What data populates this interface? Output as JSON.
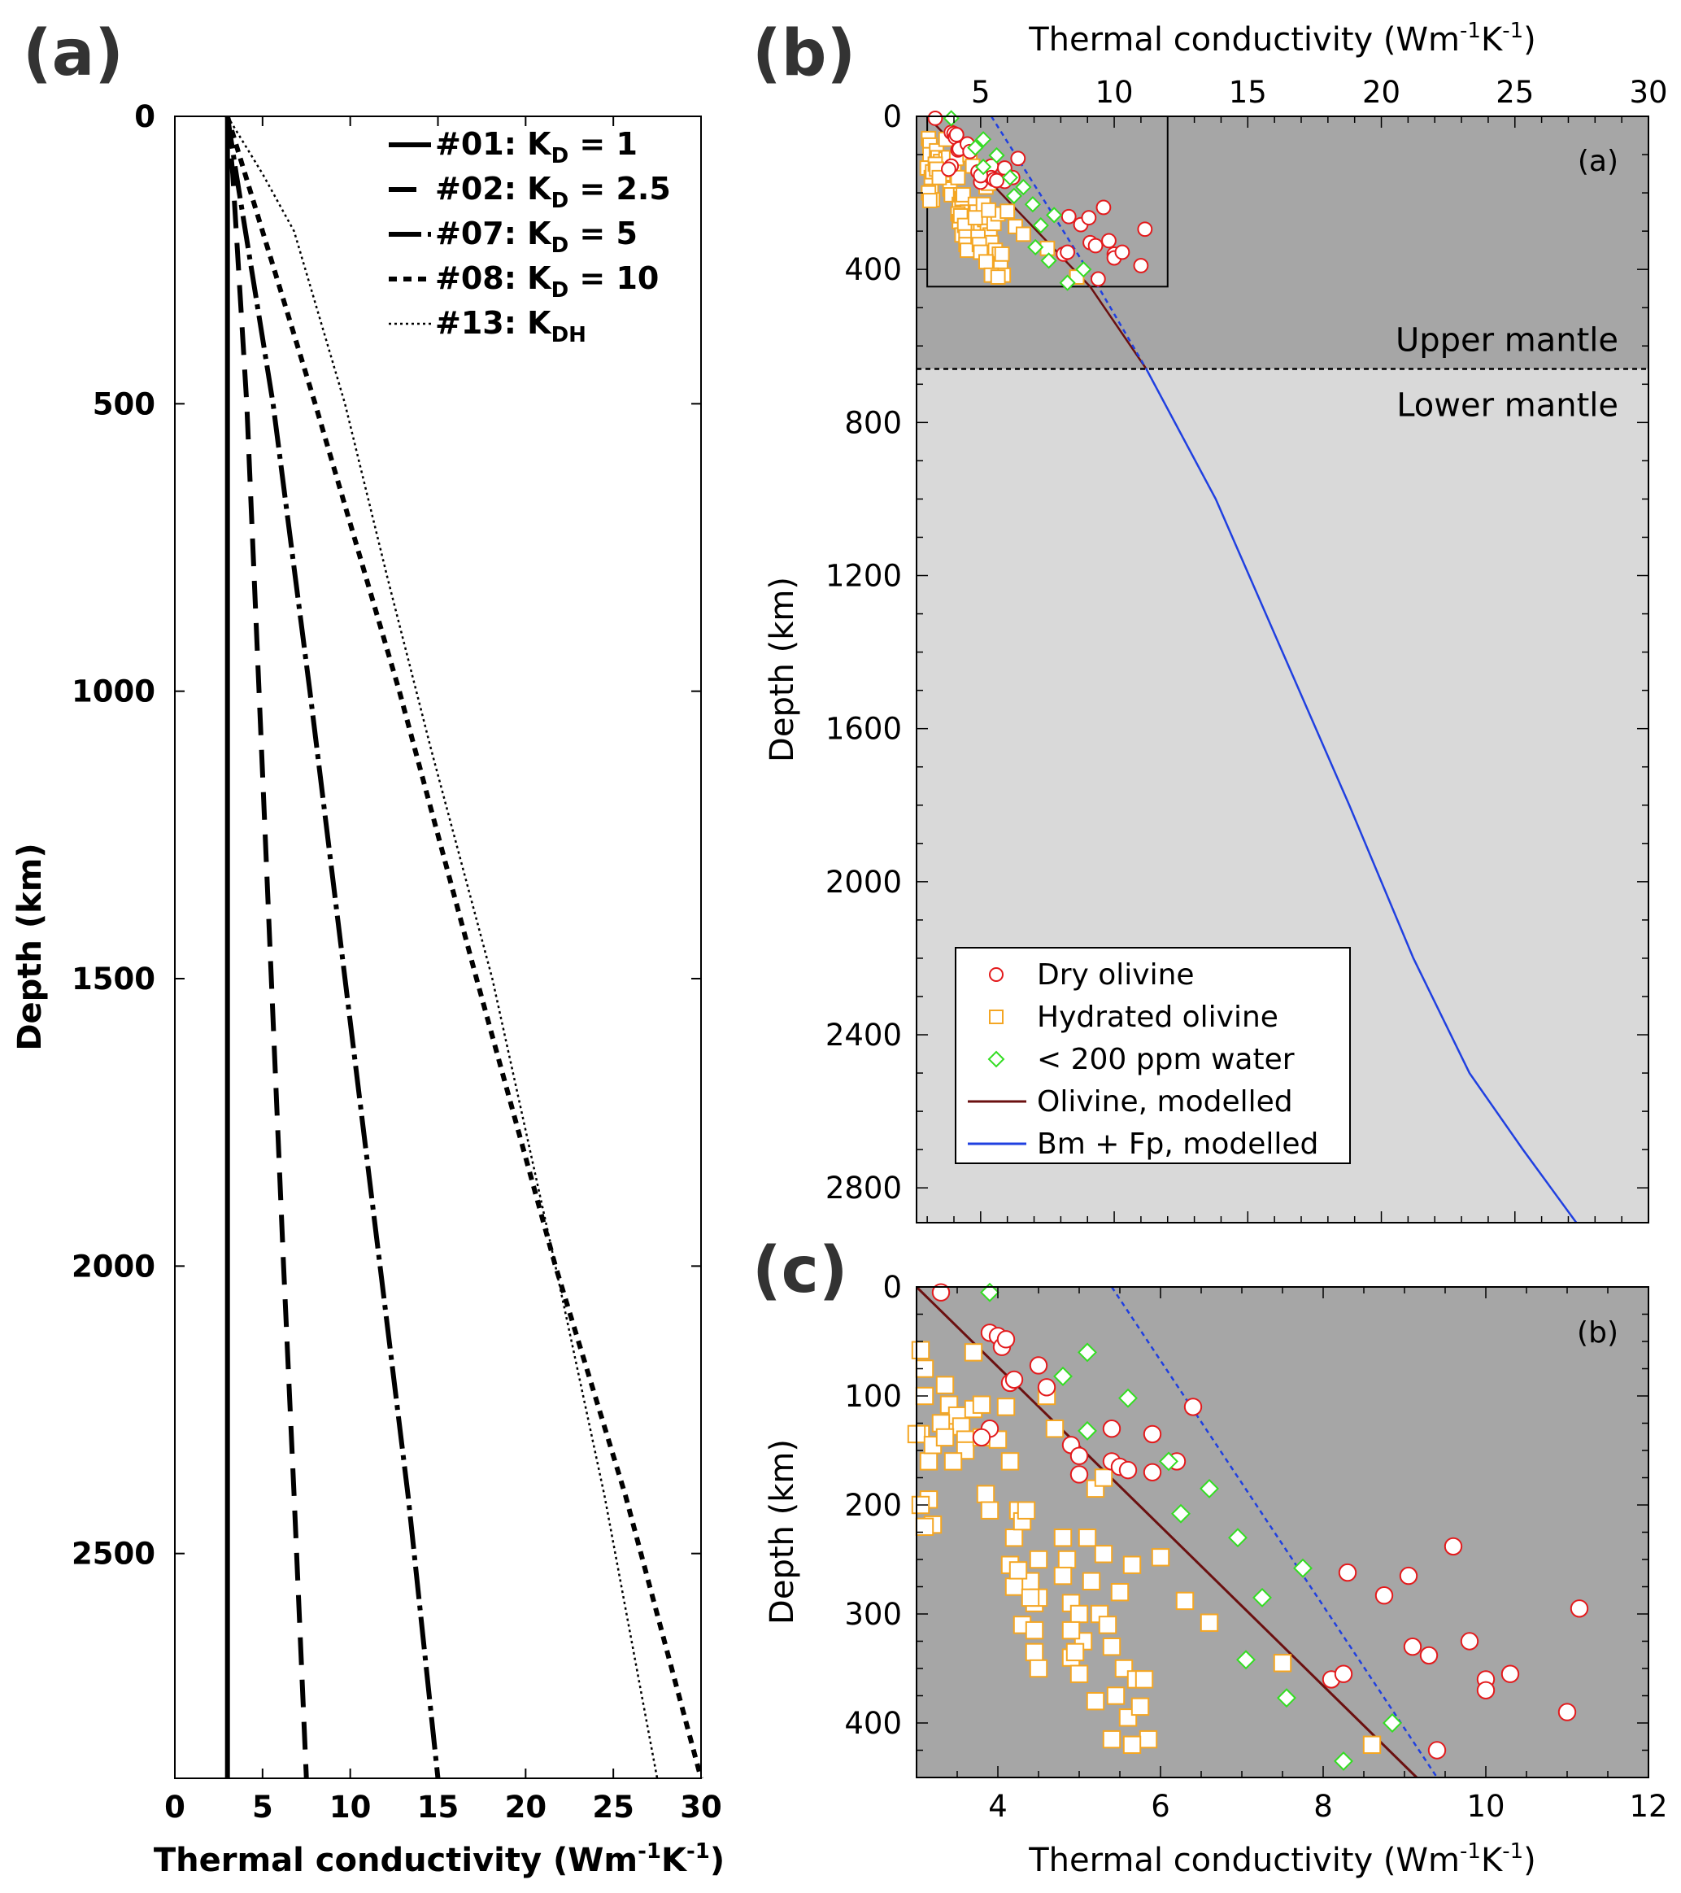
{
  "figure": {
    "panel_labels": [
      "(a)",
      "(b)",
      "(c)"
    ],
    "colors": {
      "dry": "#e31a1c",
      "hydrated": "#f4a623",
      "lowwater": "#33dd22",
      "olivine_model": "#6b1010",
      "bm_model": "#2040e0",
      "upper_mantle_bg": "#a6a6a6",
      "lower_mantle_bg": "#d9d9d9"
    }
  },
  "chart_data": [
    {
      "id": "a",
      "type": "line",
      "title": "(a)",
      "xlabel": "Thermal conductivity (Wm-1K-1)",
      "ylabel": "Depth (km)",
      "xlim": [
        0,
        30
      ],
      "ylim": [
        0,
        2891
      ],
      "y_inverted": true,
      "xticks": [
        0,
        5,
        10,
        15,
        20,
        25,
        30
      ],
      "yticks": [
        0,
        500,
        1000,
        1500,
        2000,
        2500
      ],
      "legend": [
        {
          "label": "#01: K",
          "sub": "D",
          "tail": " = 1",
          "style": "solid"
        },
        {
          "label": "#02: K",
          "sub": "D",
          "tail": " = 2.5",
          "style": "dash-long"
        },
        {
          "label": "#07: K",
          "sub": "D",
          "tail": " = 5",
          "style": "dash-dot"
        },
        {
          "label": "#08: K",
          "sub": "D",
          "tail": " = 10",
          "style": "dash-short"
        },
        {
          "label": "#13: K",
          "sub": "DH",
          "tail": "",
          "style": "dotted"
        }
      ],
      "series": [
        {
          "name": "#01: KD = 1",
          "style": "solid",
          "x": [
            3.0,
            3.0,
            3.0,
            3.0,
            3.0,
            3.0,
            3.0,
            3.0
          ],
          "y": [
            0,
            400,
            800,
            1200,
            1600,
            2000,
            2400,
            2891
          ]
        },
        {
          "name": "#02: KD = 2.5",
          "style": "dash-long",
          "x": [
            3.0,
            3.3,
            4.1,
            4.8,
            5.5,
            6.2,
            6.8,
            7.5
          ],
          "y": [
            0,
            100,
            500,
            1000,
            1500,
            2000,
            2400,
            2891
          ]
        },
        {
          "name": "#07: KD = 5",
          "style": "dash-dot",
          "x": [
            3.0,
            3.5,
            5.6,
            7.7,
            9.7,
            11.7,
            13.3,
            15.0
          ],
          "y": [
            0,
            100,
            500,
            1000,
            1500,
            2000,
            2400,
            2891
          ]
        },
        {
          "name": "#08: KD = 10",
          "style": "dash-short",
          "x": [
            3.0,
            4.0,
            8.0,
            12.8,
            17.2,
            21.7,
            25.7,
            30.0
          ],
          "y": [
            0,
            100,
            500,
            1000,
            1500,
            2000,
            2400,
            2891
          ]
        },
        {
          "name": "#13: KDH",
          "style": "dotted",
          "x": [
            3.0,
            5.0,
            6.8,
            9.7,
            12.1,
            14.6,
            18.1,
            21.7,
            24.5,
            27.5
          ],
          "y": [
            0,
            100,
            200,
            500,
            800,
            1100,
            1500,
            2000,
            2400,
            2891
          ]
        }
      ]
    },
    {
      "id": "b",
      "type": "scatter",
      "title": "(b)",
      "inset_tag": "(a)",
      "xlabel": "Thermal conductivity (Wm-1K-1)",
      "ylabel": "Depth (km)",
      "xlim": [
        2.6,
        30
      ],
      "ylim": [
        0,
        2891
      ],
      "y_inverted": true,
      "xaxis_position": "top",
      "xticks": [
        5,
        10,
        15,
        20,
        25,
        30
      ],
      "yticks": [
        0,
        400,
        800,
        1200,
        1600,
        2000,
        2400,
        2800
      ],
      "regions": [
        {
          "name": "Upper mantle",
          "from": 0,
          "to": 660
        },
        {
          "name": "Lower mantle",
          "from": 660,
          "to": 2891
        }
      ],
      "boundary_depth": 660,
      "zoom_box": {
        "x": [
          3.0,
          12.0
        ],
        "y": [
          0,
          445
        ]
      },
      "legend": [
        "Dry olivine",
        "Hydrated olivine",
        "< 200 ppm water",
        "Olivine, modelled",
        "Bm + Fp, modelled"
      ],
      "series": [
        {
          "name": "Olivine, modelled",
          "style": "solid",
          "x": [
            3.0,
            9.1
          ],
          "y": [
            0,
            445
          ]
        },
        {
          "name": "Olivine, modelled (extended)",
          "style": "solid",
          "x": [
            9.1,
            11.2
          ],
          "y": [
            445,
            660
          ]
        },
        {
          "name": "Bm + Fp, modelled (dashed)",
          "style": "dashed",
          "x": [
            5.4,
            9.4,
            11.2
          ],
          "y": [
            0,
            445,
            660
          ]
        },
        {
          "name": "Bm + Fp, modelled",
          "style": "solid",
          "x": [
            11.2,
            13.8,
            16.3,
            18.8,
            21.2,
            23.3,
            25.3,
            27.3
          ],
          "y": [
            660,
            1000,
            1400,
            1800,
            2200,
            2500,
            2700,
            2891
          ]
        }
      ]
    },
    {
      "id": "c",
      "type": "scatter",
      "title": "(c)",
      "inset_tag": "(b)",
      "xlabel": "Thermal conductivity (Wm-1K-1)",
      "ylabel": "Depth (km)",
      "xlim": [
        3,
        12
      ],
      "ylim": [
        0,
        450
      ],
      "y_inverted": true,
      "xticks": [
        4,
        6,
        8,
        10,
        12
      ],
      "yticks": [
        0,
        100,
        200,
        300,
        400
      ],
      "series": [
        {
          "name": "Olivine, modelled",
          "style": "solid",
          "x": [
            3.0,
            9.15
          ],
          "y": [
            0,
            450
          ]
        },
        {
          "name": "Bm + Fp, modelled",
          "style": "dashed",
          "x": [
            5.4,
            9.4
          ],
          "y": [
            0,
            450
          ]
        }
      ],
      "points": {
        "dry": {
          "x": [
            3.3,
            3.9,
            4.0,
            4.05,
            4.1,
            4.15,
            4.2,
            3.9,
            4.5,
            4.6,
            3.8,
            4.9,
            5.0,
            5.4,
            5.9,
            5.4,
            5.5,
            5.9,
            6.2,
            6.4,
            5.0,
            5.6,
            8.1,
            8.25,
            8.3,
            8.75,
            9.05,
            9.6,
            9.1,
            9.3,
            9.8,
            10.0,
            10.0,
            10.3,
            11.0,
            11.15,
            9.4
          ],
          "y": [
            5,
            42,
            45,
            55,
            48,
            88,
            85,
            130,
            72,
            92,
            138,
            145,
            172,
            130,
            135,
            160,
            165,
            170,
            160,
            110,
            155,
            168,
            360,
            355,
            262,
            283,
            265,
            238,
            330,
            338,
            325,
            360,
            370,
            355,
            390,
            295,
            425
          ]
        },
        "hydrated": {
          "x": [
            3.05,
            3.1,
            3.1,
            3.05,
            3.15,
            3.2,
            3.35,
            3.4,
            3.4,
            3.5,
            3.55,
            3.6,
            3.7,
            3.6,
            3.7,
            3.8,
            3.8,
            3.85,
            3.9,
            4.0,
            4.1,
            4.15,
            4.2,
            4.25,
            4.3,
            4.35,
            4.4,
            4.45,
            4.5,
            4.5,
            4.6,
            4.7,
            4.8,
            4.85,
            4.9,
            4.9,
            5.0,
            5.05,
            5.1,
            5.15,
            5.2,
            5.25,
            5.3,
            5.35,
            5.4,
            5.45,
            5.5,
            5.55,
            5.6,
            5.65,
            5.7,
            5.75,
            5.8,
            5.85,
            4.15,
            4.2,
            4.25,
            4.3,
            4.4,
            4.45,
            4.45,
            4.5,
            3.0,
            3.05,
            3.1,
            3.15,
            3.2,
            3.3,
            3.35,
            3.45,
            4.8,
            4.9,
            4.95,
            5.0,
            5.2,
            5.3,
            6.0,
            6.3,
            6.6,
            7.5,
            8.6,
            5.4,
            5.65
          ],
          "y": [
            58,
            75,
            100,
            135,
            195,
            218,
            90,
            108,
            125,
            118,
            128,
            140,
            60,
            150,
            112,
            138,
            108,
            190,
            205,
            140,
            110,
            160,
            230,
            205,
            215,
            205,
            270,
            290,
            250,
            285,
            100,
            130,
            230,
            250,
            290,
            340,
            300,
            325,
            230,
            270,
            185,
            300,
            175,
            310,
            330,
            375,
            280,
            350,
            395,
            255,
            360,
            385,
            360,
            415,
            255,
            275,
            260,
            310,
            285,
            315,
            335,
            350,
            135,
            200,
            220,
            160,
            145,
            125,
            138,
            160,
            265,
            315,
            335,
            355,
            380,
            245,
            248,
            288,
            308,
            345,
            420,
            415,
            420
          ]
        },
        "lowwater": {
          "x": [
            3.9,
            5.1,
            4.8,
            5.6,
            5.1,
            6.1,
            6.6,
            6.25,
            6.95,
            7.25,
            7.75,
            7.05,
            7.55,
            8.85,
            8.25
          ],
          "y": [
            5,
            60,
            82,
            102,
            132,
            160,
            185,
            208,
            230,
            285,
            258,
            342,
            377,
            400,
            435
          ]
        }
      }
    }
  ]
}
